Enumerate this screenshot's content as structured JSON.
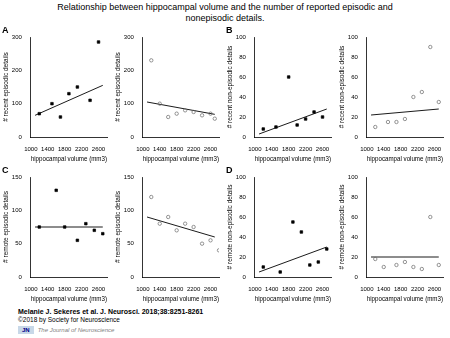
{
  "title": "Relationship between hippocampal volume and the number of reported episodic and\nnonepisodic details.",
  "annotations": [
    "Melanie J. Sekeres et al. J. Neurosci. 2018;38:8251-8261",
    "©2018 by Society for Neuroscience",
    "The Journal of Neuroscience",
    "JN"
  ],
  "chart_data": [
    {
      "type": "scatter",
      "annotations": [
        "A"
      ],
      "xlabel": "hippocampal volume (mm3)",
      "ylabel": "# recent episodic details",
      "grid": false,
      "xlim": [
        1000,
        2800
      ],
      "xticks": [
        1000,
        1400,
        1800,
        2200,
        2600
      ],
      "ylim": [
        0,
        300
      ],
      "yticks": [
        0,
        100,
        200,
        300
      ],
      "series": [
        {
          "type": "scatter",
          "marker": "square",
          "color": "#000000",
          "x": [
            1200,
            1500,
            1700,
            1900,
            2100,
            2400,
            2600
          ],
          "values": [
            70,
            100,
            60,
            130,
            150,
            110,
            285
          ]
        },
        {
          "type": "line",
          "line_style": "solid",
          "color": "#000000",
          "x": [
            1100,
            2700
          ],
          "values": [
            65,
            155
          ]
        }
      ]
    },
    {
      "type": "scatter",
      "xlabel": "hippocampal volume (mm3)",
      "ylabel": "# recent episodic details",
      "grid": false,
      "xlim": [
        1000,
        2800
      ],
      "xticks": [
        1000,
        1400,
        1800,
        2200,
        2600
      ],
      "ylim": [
        0,
        300
      ],
      "yticks": [
        0,
        100,
        200,
        300
      ],
      "series": [
        {
          "type": "scatter",
          "marker": "circle_open",
          "color": "#696969",
          "x": [
            1200,
            1400,
            1600,
            1800,
            2000,
            2200,
            2400,
            2600,
            2700
          ],
          "values": [
            230,
            100,
            60,
            70,
            80,
            75,
            65,
            70,
            55
          ]
        },
        {
          "type": "line",
          "line_style": "solid",
          "color": "#000000",
          "x": [
            1100,
            2700
          ],
          "values": [
            105,
            68
          ]
        }
      ]
    },
    {
      "type": "scatter",
      "annotations": [
        "B"
      ],
      "xlabel": "hippocampal volume (mm3)",
      "ylabel": "# recent non-episodic details",
      "grid": false,
      "xlim": [
        1000,
        2800
      ],
      "xticks": [
        1000,
        1400,
        1800,
        2200,
        2600
      ],
      "ylim": [
        0,
        100
      ],
      "yticks": [
        0,
        20,
        40,
        60,
        80,
        100
      ],
      "series": [
        {
          "type": "scatter",
          "marker": "square",
          "color": "#000000",
          "x": [
            1200,
            1500,
            1800,
            2000,
            2200,
            2400,
            2600
          ],
          "values": [
            8,
            10,
            60,
            12,
            18,
            25,
            20
          ]
        },
        {
          "type": "line",
          "line_style": "solid",
          "color": "#000000",
          "x": [
            1100,
            2700
          ],
          "values": [
            3,
            28
          ]
        }
      ]
    },
    {
      "type": "scatter",
      "xlabel": "hippocampal volume (mm3)",
      "ylabel": "# recent non-episodic details",
      "grid": false,
      "xlim": [
        1000,
        2800
      ],
      "xticks": [
        1000,
        1400,
        1800,
        2200,
        2600
      ],
      "ylim": [
        0,
        100
      ],
      "yticks": [
        0,
        20,
        40,
        60,
        80,
        100
      ],
      "series": [
        {
          "type": "scatter",
          "marker": "circle_open",
          "color": "#696969",
          "x": [
            1200,
            1500,
            1700,
            1900,
            2100,
            2300,
            2500,
            2700
          ],
          "values": [
            10,
            15,
            15,
            18,
            40,
            45,
            90,
            35
          ]
        },
        {
          "type": "line",
          "line_style": "solid",
          "color": "#000000",
          "x": [
            1100,
            2700
          ],
          "values": [
            22,
            28
          ]
        }
      ]
    },
    {
      "type": "scatter",
      "annotations": [
        "C"
      ],
      "xlabel": "hippocampal volume (mm3)",
      "ylabel": "# remote episodic details",
      "grid": false,
      "xlim": [
        1000,
        2800
      ],
      "xticks": [
        1000,
        1400,
        1800,
        2200,
        2600
      ],
      "ylim": [
        0,
        150
      ],
      "yticks": [
        0,
        50,
        100,
        150
      ],
      "series": [
        {
          "type": "scatter",
          "marker": "square",
          "color": "#000000",
          "x": [
            1200,
            1600,
            1800,
            2100,
            2300,
            2500,
            2700
          ],
          "values": [
            75,
            130,
            75,
            55,
            80,
            70,
            65
          ]
        },
        {
          "type": "line",
          "line_style": "solid",
          "color": "#000000",
          "x": [
            1100,
            2700
          ],
          "values": [
            75,
            75
          ]
        }
      ]
    },
    {
      "type": "scatter",
      "xlabel": "hippocampal volume (mm3)",
      "ylabel": "# remote episodic details",
      "grid": false,
      "xlim": [
        1000,
        2800
      ],
      "xticks": [
        1000,
        1400,
        1800,
        2200,
        2600
      ],
      "ylim": [
        0,
        150
      ],
      "yticks": [
        0,
        50,
        100,
        150
      ],
      "series": [
        {
          "type": "scatter",
          "marker": "circle_open",
          "color": "#696969",
          "x": [
            1200,
            1400,
            1600,
            1800,
            2000,
            2200,
            2400,
            2600,
            2800
          ],
          "values": [
            120,
            80,
            90,
            70,
            80,
            75,
            50,
            55,
            40
          ]
        },
        {
          "type": "line",
          "line_style": "solid",
          "color": "#000000",
          "x": [
            1100,
            2700
          ],
          "values": [
            90,
            60
          ]
        }
      ]
    },
    {
      "type": "scatter",
      "annotations": [
        "D"
      ],
      "xlabel": "hippocampal volume (mm3)",
      "ylabel": "# remote non-episodic details",
      "grid": false,
      "xlim": [
        1000,
        2800
      ],
      "xticks": [
        1000,
        1400,
        1800,
        2200,
        2600
      ],
      "ylim": [
        0,
        100
      ],
      "yticks": [
        0,
        20,
        40,
        60,
        80,
        100
      ],
      "series": [
        {
          "type": "scatter",
          "marker": "square",
          "color": "#000000",
          "x": [
            1200,
            1600,
            1900,
            2100,
            2300,
            2500,
            2700
          ],
          "values": [
            10,
            5,
            55,
            45,
            12,
            15,
            28
          ]
        },
        {
          "type": "line",
          "line_style": "solid",
          "color": "#000000",
          "x": [
            1100,
            2700
          ],
          "values": [
            5,
            30
          ]
        }
      ]
    },
    {
      "type": "scatter",
      "xlabel": "hippocampal volume (mm3)",
      "ylabel": "# remote non-episodic details",
      "grid": false,
      "xlim": [
        1000,
        2800
      ],
      "xticks": [
        1000,
        1400,
        1800,
        2200,
        2600
      ],
      "ylim": [
        0,
        100
      ],
      "yticks": [
        0,
        20,
        40,
        60,
        80,
        100
      ],
      "series": [
        {
          "type": "scatter",
          "marker": "circle_open",
          "color": "#696969",
          "x": [
            1200,
            1400,
            1700,
            1900,
            2100,
            2300,
            2500,
            2700
          ],
          "values": [
            18,
            10,
            12,
            15,
            10,
            8,
            60,
            12
          ]
        },
        {
          "type": "line",
          "line_style": "solid",
          "color": "#000000",
          "x": [
            1100,
            2700
          ],
          "values": [
            20,
            20
          ]
        }
      ]
    }
  ]
}
